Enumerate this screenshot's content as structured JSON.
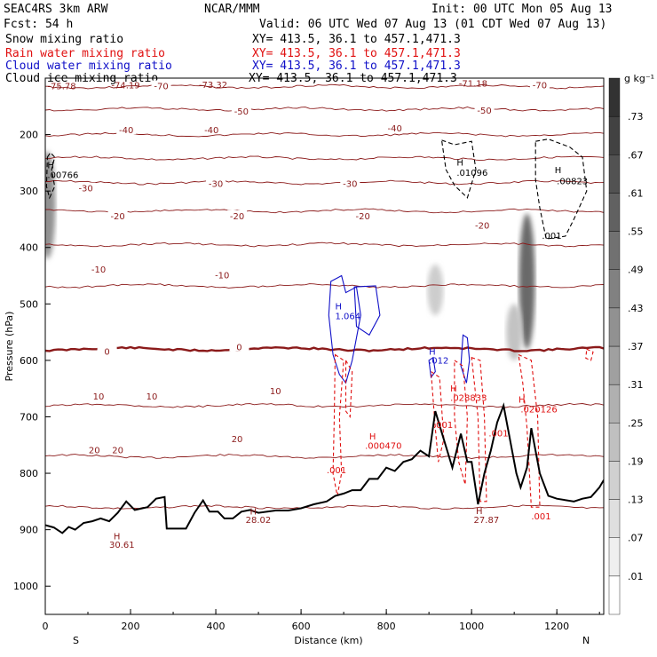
{
  "header": {
    "line1_left": "SEAC4RS  3km ARW",
    "line1_center": "NCAR/MMM",
    "line1_right": "Init: 00 UTC Mon 05 Aug 13",
    "line2_left": "Fcst:   54 h",
    "line2_right": "Valid: 06 UTC Wed 07 Aug 13 (01 CDT Wed 07 Aug 13)",
    "fields": [
      {
        "label": "Snow mixing ratio",
        "xy": "XY=  413.5,  36.1 to 457.1,471.3",
        "color": "#000000"
      },
      {
        "label": "Rain water mixing ratio",
        "xy": "XY=  413.5,  36.1  to  457.1,471.3",
        "color": "#e01010"
      },
      {
        "label": "Cloud water mixing ratio",
        "xy": "XY=  413.5,  36.1  to  457.1,471.3",
        "color": "#1010c8"
      },
      {
        "label": "Cloud ice mixing ratio",
        "xy": "XY=  413.5,  36.1 to 457.1,471.3",
        "color": "#000000"
      }
    ]
  },
  "chart_data": {
    "type": "cross-section",
    "xlabel": "Distance (km)",
    "ylabel": "Pressure (hPa)",
    "xlim": [
      0,
      1310
    ],
    "ylim": [
      1050,
      100
    ],
    "x_ticks": [
      0,
      200,
      400,
      600,
      800,
      1000,
      1200
    ],
    "y_ticks": [
      200,
      300,
      400,
      500,
      600,
      700,
      800,
      900,
      1000
    ],
    "endpoints": {
      "left": "S",
      "right": "N"
    },
    "colorbar": {
      "unit": "g kg⁻¹",
      "levels": [
        ".01",
        ".07",
        ".13",
        ".19",
        ".25",
        ".31",
        ".37",
        ".43",
        ".49",
        ".55",
        ".61",
        ".67",
        ".73"
      ]
    },
    "temperature_contours": {
      "levels_c": [
        -70,
        -60,
        -50,
        -40,
        -30,
        -20,
        -10,
        0,
        10,
        20,
        30
      ],
      "pressure_hpa": [
        115,
        155,
        200,
        242,
        285,
        335,
        395,
        468,
        580,
        680,
        770,
        860
      ],
      "freezing_level_hpa": 580,
      "labels": [
        {
          "text": "-70",
          "x_km": 272,
          "p": 115
        },
        {
          "text": "-70",
          "x_km": 1160,
          "p": 113
        },
        {
          "text": "-50",
          "x_km": 460,
          "p": 160
        },
        {
          "text": "-50",
          "x_km": 1030,
          "p": 158
        },
        {
          "text": "-40",
          "x_km": 190,
          "p": 193
        },
        {
          "text": "-40",
          "x_km": 390,
          "p": 193
        },
        {
          "text": "-40",
          "x_km": 820,
          "p": 190
        },
        {
          "text": "-30",
          "x_km": 95,
          "p": 296
        },
        {
          "text": "-30",
          "x_km": 400,
          "p": 288
        },
        {
          "text": "-30",
          "x_km": 715,
          "p": 288
        },
        {
          "text": "-20",
          "x_km": 170,
          "p": 345
        },
        {
          "text": "-20",
          "x_km": 450,
          "p": 345
        },
        {
          "text": "-20",
          "x_km": 745,
          "p": 345
        },
        {
          "text": "-20",
          "x_km": 1025,
          "p": 362
        },
        {
          "text": "-10",
          "x_km": 125,
          "p": 440
        },
        {
          "text": "-10",
          "x_km": 415,
          "p": 450
        },
        {
          "text": "0",
          "x_km": 145,
          "p": 585
        },
        {
          "text": "0",
          "x_km": 455,
          "p": 577
        },
        {
          "text": "10",
          "x_km": 125,
          "p": 665
        },
        {
          "text": "10",
          "x_km": 250,
          "p": 665
        },
        {
          "text": "10",
          "x_km": 540,
          "p": 655
        },
        {
          "text": "20",
          "x_km": 115,
          "p": 760
        },
        {
          "text": "20",
          "x_km": 170,
          "p": 760
        },
        {
          "text": "20",
          "x_km": 450,
          "p": 740
        }
      ]
    },
    "value_labels": [
      {
        "text": "-75.78",
        "x_km": 5,
        "p": 120,
        "color": "#8b1a1a"
      },
      {
        "text": "-74.19",
        "x_km": 155,
        "p": 118,
        "color": "#8b1a1a"
      },
      {
        "text": "-73.32",
        "x_km": 360,
        "p": 117,
        "color": "#8b1a1a"
      },
      {
        "text": "-71.18",
        "x_km": 970,
        "p": 115,
        "color": "#8b1a1a"
      },
      {
        "text": "H",
        "x_km": 5,
        "p": 260,
        "color": "#000000"
      },
      {
        "text": ".00766",
        "x_km": 5,
        "p": 277,
        "color": "#000000"
      },
      {
        "text": "H",
        "x_km": 965,
        "p": 255,
        "color": "#000000"
      },
      {
        "text": ".01096",
        "x_km": 965,
        "p": 273,
        "color": "#000000"
      },
      {
        "text": "H",
        "x_km": 1195,
        "p": 268,
        "color": "#000000"
      },
      {
        "text": ".00823",
        "x_km": 1200,
        "p": 288,
        "color": "#000000"
      },
      {
        "text": ".001",
        "x_km": 1165,
        "p": 385,
        "color": "#000000"
      },
      {
        "text": "H",
        "x_km": 680,
        "p": 510,
        "color": "#1010c8"
      },
      {
        "text": "1.064",
        "x_km": 680,
        "p": 527,
        "color": "#1010c8"
      },
      {
        "text": "H",
        "x_km": 900,
        "p": 590,
        "color": "#1010c8"
      },
      {
        "text": ".012",
        "x_km": 900,
        "p": 606,
        "color": "#1010c8"
      },
      {
        "text": ".001",
        "x_km": 910,
        "p": 720,
        "color": "#e01010"
      },
      {
        "text": "H",
        "x_km": 950,
        "p": 655,
        "color": "#e01010"
      },
      {
        "text": ".028833",
        "x_km": 950,
        "p": 672,
        "color": "#e01010"
      },
      {
        "text": "H",
        "x_km": 1110,
        "p": 675,
        "color": "#e01010"
      },
      {
        "text": ".020126",
        "x_km": 1115,
        "p": 692,
        "color": "#e01010"
      },
      {
        "text": ".001",
        "x_km": 1040,
        "p": 735,
        "color": "#e01010"
      },
      {
        "text": "H",
        "x_km": 760,
        "p": 740,
        "color": "#e01010"
      },
      {
        "text": ".000470",
        "x_km": 750,
        "p": 757,
        "color": "#e01010"
      },
      {
        "text": ".001",
        "x_km": 660,
        "p": 800,
        "color": "#e01010"
      },
      {
        "text": ".001",
        "x_km": 1140,
        "p": 882,
        "color": "#e01010"
      },
      {
        "text": "H",
        "x_km": 480,
        "p": 873,
        "color": "#8b1a1a"
      },
      {
        "text": "28.02",
        "x_km": 470,
        "p": 888,
        "color": "#8b1a1a"
      },
      {
        "text": "H",
        "x_km": 160,
        "p": 917,
        "color": "#8b1a1a"
      },
      {
        "text": "30.61",
        "x_km": 150,
        "p": 932,
        "color": "#8b1a1a"
      },
      {
        "text": "H",
        "x_km": 1010,
        "p": 872,
        "color": "#8b1a1a"
      },
      {
        "text": "27.87",
        "x_km": 1005,
        "p": 888,
        "color": "#8b1a1a"
      }
    ],
    "terrain_km_hpa": [
      [
        0,
        892
      ],
      [
        20,
        896
      ],
      [
        40,
        906
      ],
      [
        55,
        895
      ],
      [
        70,
        900
      ],
      [
        90,
        888
      ],
      [
        110,
        885
      ],
      [
        130,
        880
      ],
      [
        150,
        885
      ],
      [
        170,
        870
      ],
      [
        190,
        850
      ],
      [
        210,
        865
      ],
      [
        240,
        860
      ],
      [
        260,
        845
      ],
      [
        280,
        842
      ],
      [
        285,
        898
      ],
      [
        330,
        898
      ],
      [
        350,
        870
      ],
      [
        370,
        848
      ],
      [
        385,
        868
      ],
      [
        405,
        868
      ],
      [
        420,
        880
      ],
      [
        440,
        880
      ],
      [
        460,
        868
      ],
      [
        480,
        865
      ],
      [
        500,
        870
      ],
      [
        540,
        866
      ],
      [
        570,
        866
      ],
      [
        600,
        862
      ],
      [
        630,
        855
      ],
      [
        660,
        850
      ],
      [
        680,
        840
      ],
      [
        700,
        836
      ],
      [
        720,
        830
      ],
      [
        740,
        830
      ],
      [
        760,
        810
      ],
      [
        780,
        810
      ],
      [
        800,
        790
      ],
      [
        820,
        796
      ],
      [
        840,
        780
      ],
      [
        860,
        775
      ],
      [
        880,
        760
      ],
      [
        900,
        770
      ],
      [
        915,
        690
      ],
      [
        935,
        740
      ],
      [
        955,
        790
      ],
      [
        975,
        730
      ],
      [
        990,
        780
      ],
      [
        1000,
        780
      ],
      [
        1015,
        855
      ],
      [
        1030,
        800
      ],
      [
        1045,
        760
      ],
      [
        1060,
        710
      ],
      [
        1075,
        680
      ],
      [
        1090,
        740
      ],
      [
        1105,
        800
      ],
      [
        1115,
        825
      ],
      [
        1130,
        790
      ],
      [
        1140,
        720
      ],
      [
        1160,
        800
      ],
      [
        1180,
        840
      ],
      [
        1200,
        845
      ],
      [
        1240,
        850
      ],
      [
        1260,
        845
      ],
      [
        1280,
        842
      ],
      [
        1300,
        825
      ],
      [
        1310,
        812
      ]
    ],
    "cloud_ice_contours_km_hpa": [
      [
        [
          5,
          240
        ],
        [
          12,
          232
        ],
        [
          22,
          240
        ],
        [
          15,
          262
        ],
        [
          22,
          292
        ],
        [
          10,
          312
        ],
        [
          3,
          292
        ]
      ],
      [
        [
          930,
          210
        ],
        [
          960,
          218
        ],
        [
          1000,
          212
        ],
        [
          1010,
          262
        ],
        [
          990,
          312
        ],
        [
          960,
          290
        ],
        [
          940,
          262
        ]
      ],
      [
        [
          1150,
          212
        ],
        [
          1180,
          208
        ],
        [
          1230,
          222
        ],
        [
          1260,
          240
        ],
        [
          1270,
          300
        ],
        [
          1240,
          350
        ],
        [
          1220,
          380
        ],
        [
          1175,
          385
        ],
        [
          1160,
          330
        ],
        [
          1150,
          280
        ]
      ]
    ],
    "cloud_water_contours_km_hpa": [
      [
        [
          670,
          460
        ],
        [
          695,
          450
        ],
        [
          705,
          480
        ],
        [
          730,
          470
        ],
        [
          740,
          520
        ],
        [
          720,
          600
        ],
        [
          705,
          640
        ],
        [
          690,
          625
        ],
        [
          675,
          590
        ],
        [
          665,
          520
        ]
      ],
      [
        [
          725,
          470
        ],
        [
          775,
          468
        ],
        [
          785,
          520
        ],
        [
          760,
          555
        ],
        [
          730,
          540
        ]
      ],
      [
        [
          980,
          555
        ],
        [
          990,
          560
        ],
        [
          995,
          600
        ],
        [
          988,
          640
        ],
        [
          975,
          610
        ]
      ],
      [
        [
          900,
          600
        ],
        [
          910,
          595
        ],
        [
          915,
          620
        ],
        [
          905,
          630
        ]
      ]
    ],
    "rain_water_contours_km_hpa": [
      [
        [
          680,
          590
        ],
        [
          700,
          600
        ],
        [
          690,
          700
        ],
        [
          695,
          800
        ],
        [
          685,
          840
        ],
        [
          675,
          800
        ],
        [
          678,
          700
        ]
      ],
      [
        [
          705,
          600
        ],
        [
          720,
          620
        ],
        [
          715,
          700
        ],
        [
          705,
          690
        ]
      ],
      [
        [
          905,
          620
        ],
        [
          925,
          630
        ],
        [
          935,
          740
        ],
        [
          922,
          780
        ],
        [
          915,
          720
        ]
      ],
      [
        [
          960,
          600
        ],
        [
          980,
          610
        ],
        [
          990,
          700
        ],
        [
          985,
          820
        ],
        [
          970,
          780
        ],
        [
          960,
          700
        ]
      ],
      [
        [
          1000,
          595
        ],
        [
          1020,
          600
        ],
        [
          1030,
          700
        ],
        [
          1035,
          850
        ],
        [
          1020,
          850
        ],
        [
          1015,
          700
        ]
      ],
      [
        [
          1110,
          590
        ],
        [
          1140,
          600
        ],
        [
          1155,
          700
        ],
        [
          1160,
          860
        ],
        [
          1140,
          860
        ],
        [
          1130,
          720
        ],
        [
          1120,
          640
        ]
      ],
      [
        [
          1270,
          580
        ],
        [
          1285,
          585
        ],
        [
          1280,
          600
        ],
        [
          1268,
          596
        ]
      ]
    ],
    "snow_shading_km_hpa": [
      {
        "x_km": 5,
        "p_top": 230,
        "p_bottom": 420,
        "intensity": 0.55
      },
      {
        "x_km": 915,
        "p_top": 430,
        "p_bottom": 520,
        "intensity": 0.25
      },
      {
        "x_km": 1130,
        "p_top": 340,
        "p_bottom": 580,
        "intensity": 0.75
      },
      {
        "x_km": 1100,
        "p_top": 500,
        "p_bottom": 600,
        "intensity": 0.3
      }
    ]
  }
}
